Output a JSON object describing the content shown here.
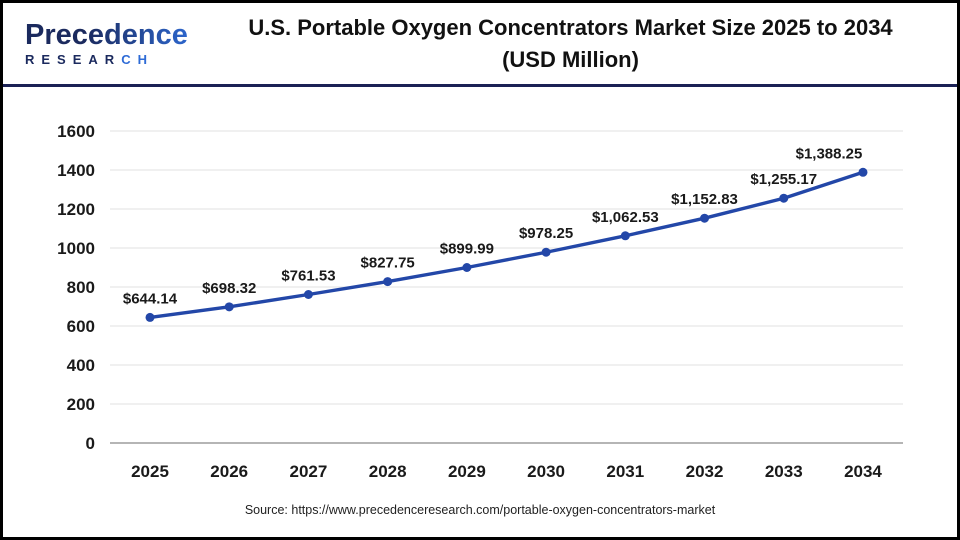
{
  "header": {
    "logo": {
      "name": "Precedence",
      "sub_main": "RESEAR",
      "sub_accent": "CH"
    },
    "title_line1": "U.S. Portable Oxygen Concentrators Market Size 2025 to 2034",
    "title_line2": "(USD Million)"
  },
  "chart_data": {
    "type": "line",
    "title": "U.S. Portable Oxygen Concentrators Market Size 2025 to 2034 (USD Million)",
    "categories": [
      "2025",
      "2026",
      "2027",
      "2028",
      "2029",
      "2030",
      "2031",
      "2032",
      "2033",
      "2034"
    ],
    "values": [
      644.14,
      698.32,
      761.53,
      827.75,
      899.99,
      978.25,
      1062.53,
      1152.83,
      1255.17,
      1388.25
    ],
    "data_labels": [
      "$644.14",
      "$698.32",
      "$761.53",
      "$827.75",
      "$899.99",
      "$978.25",
      "$1,062.53",
      "$1,152.83",
      "$1,255.17",
      "$1,388.25"
    ],
    "xlabel": "",
    "ylabel": "",
    "ylim": [
      0,
      1600
    ],
    "y_ticks": [
      0,
      200,
      400,
      600,
      800,
      1000,
      1200,
      1400,
      1600
    ],
    "grid": "horizontal",
    "legend": "none",
    "series_name": "U.S. Portable Oxygen Concentrators Market Size (USD Million)",
    "colors": {
      "line": "#2347a8",
      "marker": "#2347a8",
      "gridline": "#e8e8e8",
      "zero_axis": "#b5b5b5",
      "tick_label": "#1a1a1a",
      "data_label": "#1a1a1a"
    }
  },
  "footer": {
    "source": "Source: https://www.precedenceresearch.com/portable-oxygen-concentrators-market"
  }
}
